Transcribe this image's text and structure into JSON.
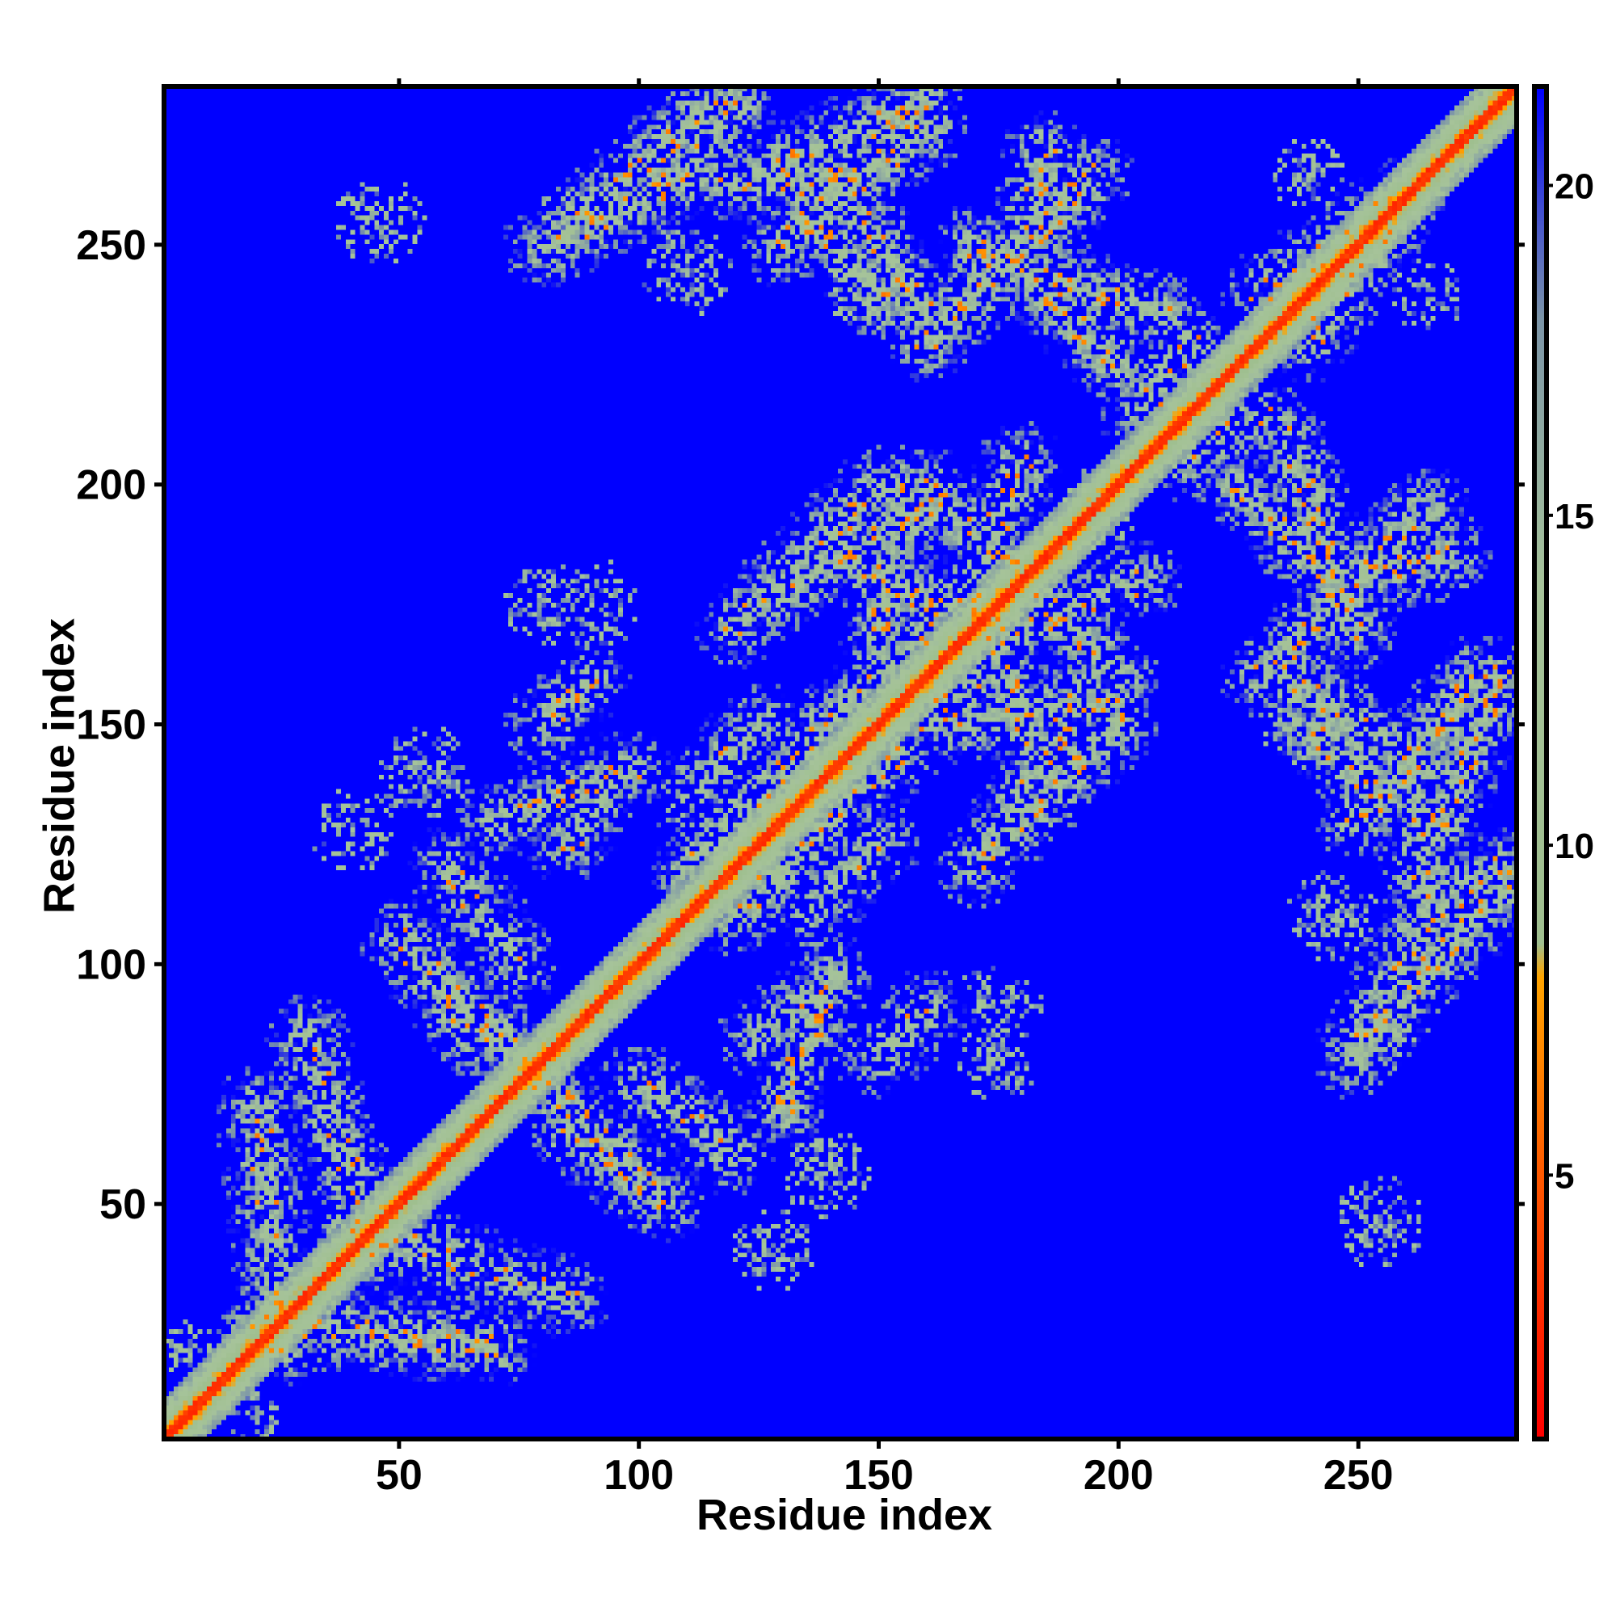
{
  "chart_data": {
    "type": "heatmap",
    "title": "",
    "xlabel": "Residue index",
    "ylabel": "Residue index",
    "xlim": [
      1,
      283
    ],
    "ylim": [
      1,
      283
    ],
    "x_ticks": [
      50,
      100,
      150,
      200,
      250
    ],
    "y_ticks": [
      50,
      100,
      150,
      200,
      250
    ],
    "colorbar": {
      "ticks": [
        5,
        10,
        15,
        20
      ],
      "range": [
        1,
        21.5
      ],
      "colors": [
        {
          "value": 1,
          "color": "#ff0000"
        },
        {
          "value": 5,
          "color": "#ff5a00"
        },
        {
          "value": 8,
          "color": "#ffa500"
        },
        {
          "value": 8.5,
          "color": "#9fbf8f"
        },
        {
          "value": 14,
          "color": "#a6c39a"
        },
        {
          "value": 18,
          "color": "#7c95a8"
        },
        {
          "value": 21.5,
          "color": "#0000ff"
        }
      ]
    },
    "n_residues": 283,
    "background_value": 21.5,
    "diagonal": {
      "center_value": 2.5
    },
    "contact_lines": [
      {
        "a": [
          20,
          25
        ],
        "b": [
          70,
          20
        ],
        "strength": 0.8
      },
      {
        "a": [
          30,
          85
        ],
        "b": [
          45,
          40
        ],
        "strength": 0.6
      },
      {
        "a": [
          55,
          100
        ],
        "b": [
          80,
          75
        ],
        "strength": 0.8
      },
      {
        "a": [
          70,
          130
        ],
        "b": [
          98,
          140
        ],
        "strength": 0.8
      },
      {
        "a": [
          85,
          65
        ],
        "b": [
          105,
          50
        ],
        "strength": 0.7
      },
      {
        "a": [
          100,
          75
        ],
        "b": [
          120,
          60
        ],
        "strength": 0.5
      },
      {
        "a": [
          125,
          85
        ],
        "b": [
          140,
          95
        ],
        "strength": 0.7
      },
      {
        "a": [
          135,
          110
        ],
        "b": [
          150,
          125
        ],
        "strength": 0.5
      },
      {
        "a": [
          110,
          120
        ],
        "b": [
          145,
          155
        ],
        "strength": 0.7
      },
      {
        "a": [
          125,
          175
        ],
        "b": [
          160,
          195
        ],
        "strength": 0.8
      },
      {
        "a": [
          140,
          185
        ],
        "b": [
          175,
          170
        ],
        "strength": 0.8
      },
      {
        "a": [
          160,
          200
        ],
        "b": [
          180,
          180
        ],
        "strength": 0.7
      },
      {
        "a": [
          165,
          150
        ],
        "b": [
          200,
          155
        ],
        "strength": 0.8
      },
      {
        "a": [
          170,
          120
        ],
        "b": [
          200,
          150
        ],
        "strength": 0.7
      },
      {
        "a": [
          180,
          170
        ],
        "b": [
          205,
          180
        ],
        "strength": 0.6
      },
      {
        "a": [
          150,
          160
        ],
        "b": [
          160,
          170
        ],
        "strength": 0.5
      },
      {
        "a": [
          205,
          215
        ],
        "b": [
          215,
          230
        ],
        "strength": 0.5
      },
      {
        "a": [
          160,
          230
        ],
        "b": [
          195,
          265
        ],
        "strength": 0.8
      },
      {
        "a": [
          170,
          250
        ],
        "b": [
          210,
          235
        ],
        "strength": 0.8
      },
      {
        "a": [
          125,
          265
        ],
        "b": [
          160,
          280
        ],
        "strength": 0.8
      },
      {
        "a": [
          82,
          250
        ],
        "b": [
          115,
          280
        ],
        "strength": 0.8
      },
      {
        "a": [
          130,
          250
        ],
        "b": [
          140,
          262
        ],
        "strength": 0.6
      },
      {
        "a": [
          225,
          200
        ],
        "b": [
          245,
          180
        ],
        "strength": 0.8
      },
      {
        "a": [
          245,
          180
        ],
        "b": [
          270,
          185
        ],
        "strength": 0.7
      },
      {
        "a": [
          235,
          160
        ],
        "b": [
          265,
          140
        ],
        "strength": 0.7
      },
      {
        "a": [
          255,
          135
        ],
        "b": [
          275,
          160
        ],
        "strength": 0.8
      },
      {
        "a": [
          262,
          140
        ],
        "b": [
          265,
          110
        ],
        "strength": 0.7
      },
      {
        "a": [
          265,
          110
        ],
        "b": [
          280,
          120
        ],
        "strength": 0.8
      },
      {
        "a": [
          250,
          80
        ],
        "b": [
          265,
          110
        ],
        "strength": 0.8
      },
      {
        "a": [
          240,
          150
        ],
        "b": [
          255,
          135
        ],
        "strength": 0.6
      },
      {
        "a": [
          230,
          240
        ],
        "b": [
          260,
          260
        ],
        "strength": 0.6
      },
      {
        "a": [
          150,
          80
        ],
        "b": [
          160,
          90
        ],
        "strength": 0.5
      }
    ],
    "sparse_patches": [
      {
        "center": [
          47,
          255
        ],
        "radius": 9
      },
      {
        "center": [
          90,
          175
        ],
        "radius": 10
      },
      {
        "center": [
          40,
          128
        ],
        "radius": 9
      },
      {
        "center": [
          150,
          240
        ],
        "radius": 10
      },
      {
        "center": [
          175,
          80
        ],
        "radius": 9
      },
      {
        "center": [
          255,
          45
        ],
        "radius": 9
      },
      {
        "center": [
          140,
          55
        ],
        "radius": 10
      },
      {
        "center": [
          265,
          240
        ],
        "radius": 8
      },
      {
        "center": [
          20,
          5
        ],
        "radius": 6
      },
      {
        "center": [
          195,
          195
        ],
        "radius": 9
      },
      {
        "center": [
          245,
          110
        ],
        "radius": 10
      },
      {
        "center": [
          255,
          85
        ],
        "radius": 8
      }
    ]
  }
}
